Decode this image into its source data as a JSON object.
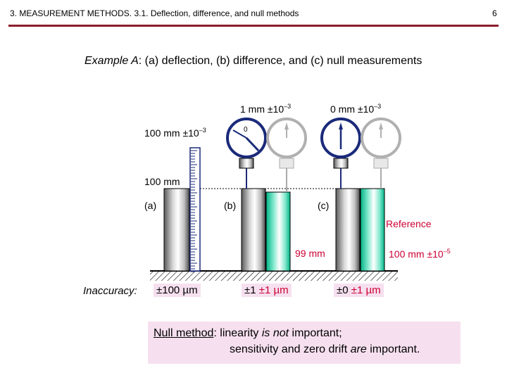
{
  "header": {
    "title": "3. MEASUREMENT METHODS. 3.1. Deflection, difference, and null methods",
    "page_number": "6"
  },
  "main_title": {
    "example": "Example A",
    "rest": ":  (a) deflection, (b) difference, and (c) null measurements"
  },
  "labels": {
    "ruler_reading": "100 mm ±10",
    "ruler_exp": "–3",
    "gauge_b_reading": "1 mm ±10",
    "gauge_b_exp": "–3",
    "gauge_c_reading": "0 mm ±10",
    "gauge_c_exp": "–3",
    "gauge_zero": "0",
    "height_100mm": "100 mm",
    "case_a": "(a)",
    "case_b": "(b)",
    "case_c": "(c)",
    "reference": "Reference",
    "ref_99": "99 mm",
    "ref_100": "100 mm ±10",
    "ref_100_exp": "–5"
  },
  "inaccuracy": {
    "label": "Inaccuracy:",
    "a": "±100 µm",
    "b_main": "±1",
    "b_ref": "±1 µm",
    "c_main": "±0",
    "c_ref": "±1 µm"
  },
  "null_method": {
    "term": "Null method",
    "line1_a": ":  linearity ",
    "line1_em": "is not",
    "line1_b": " important;",
    "line2_a": "sensitivity and zero drift ",
    "line2_em": "are",
    "line2_b": " important."
  },
  "colors": {
    "rule": "#8b1c2c",
    "accent_red": "#cc0033",
    "pink_bg": "#f6e0ef",
    "teal_block": "#00cc99",
    "gauge_blue": "#1a2a7a"
  }
}
